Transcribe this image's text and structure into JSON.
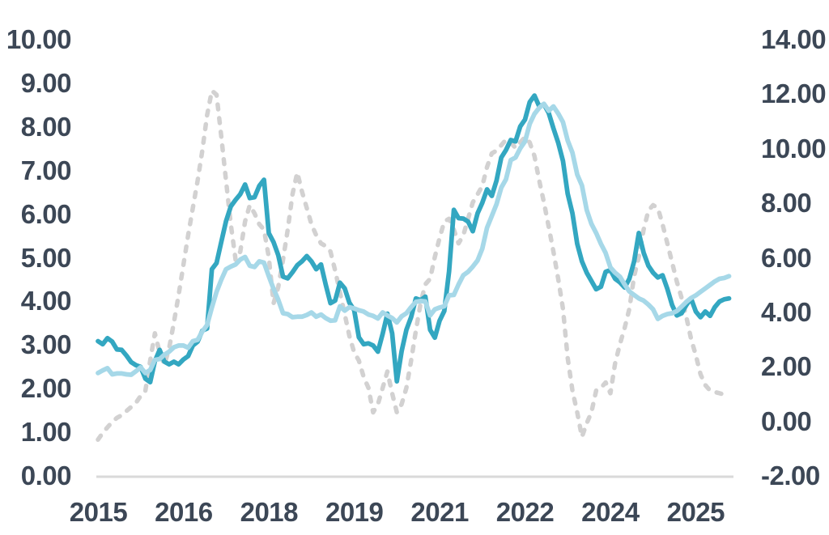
{
  "chart_data": {
    "type": "line",
    "title": "",
    "xlabel": "",
    "ylabel_left": "",
    "ylabel_right": "",
    "grid": false,
    "legend": "none",
    "x_axis": {
      "start": "2015-01",
      "frequency": "monthly",
      "tick_labels": [
        "2015",
        "2016",
        "2018",
        "2019",
        "2021",
        "2022",
        "2024",
        "2025"
      ],
      "tick_interval_months": 18
    },
    "y_axis_left": {
      "min": 0,
      "max": 10,
      "tick_labels": [
        "10.00",
        "9.00",
        "8.00",
        "7.00",
        "6.00",
        "5.00",
        "4.00",
        "3.00",
        "2.00",
        "1.00",
        "0.00"
      ]
    },
    "y_axis_right": {
      "min": -2,
      "max": 14,
      "tick_labels": [
        "14.00",
        "12.00",
        "10.00",
        "8.00",
        "6.00",
        "4.00",
        "2.00",
        "0.00",
        "-2.00"
      ]
    },
    "series": [
      {
        "name": "gray-dashed-line",
        "axis": "right",
        "style": "dashed",
        "color": "#D2D1D1",
        "values": [
          -0.7,
          -0.45,
          -0.25,
          -0.05,
          0.1,
          0.2,
          0.35,
          0.5,
          0.65,
          0.9,
          1.1,
          2.2,
          3.2,
          2.5,
          2.05,
          2.65,
          3.6,
          4.6,
          5.7,
          6.8,
          7.8,
          8.8,
          9.9,
          11.2,
          12.1,
          11.95,
          10.4,
          8.8,
          7.2,
          5.9,
          6.2,
          7.3,
          7.9,
          7.6,
          7.2,
          7.0,
          6.0,
          4.3,
          4.9,
          5.9,
          7.0,
          8.3,
          9.1,
          8.4,
          7.8,
          7.2,
          6.8,
          6.5,
          6.4,
          6.2,
          5.5,
          4.7,
          3.9,
          3.1,
          2.5,
          2.2,
          1.6,
          1.2,
          0.3,
          0.6,
          1.2,
          1.8,
          1.0,
          0.3,
          0.6,
          1.2,
          2.2,
          3.3,
          4.3,
          5.0,
          5.2,
          6.0,
          6.7,
          7.3,
          7.4,
          7.0,
          6.5,
          6.8,
          7.4,
          8.0,
          8.3,
          8.6,
          9.3,
          9.8,
          9.9,
          10.1,
          10.3,
          10.2,
          10.0,
          10.2,
          10.4,
          10.2,
          9.7,
          8.8,
          8.0,
          7.1,
          6.2,
          5.2,
          4.1,
          2.3,
          1.1,
          0.3,
          -0.6,
          -0.1,
          0.3,
          1.1,
          1.2,
          1.4,
          1.0,
          2.1,
          2.8,
          3.4,
          4.1,
          5.3,
          6.0,
          7.0,
          7.7,
          7.9,
          7.8,
          7.2,
          6.5,
          5.8,
          5.1,
          4.5,
          3.8,
          3.0,
          2.4,
          1.7,
          1.3,
          1.1,
          1.05,
          1.0,
          0.95,
          0.9
        ]
      },
      {
        "name": "teal-solid-line",
        "axis": "left",
        "style": "solid",
        "color": "#33A7C1",
        "values": [
          3.07,
          3.0,
          3.14,
          3.06,
          2.88,
          2.87,
          2.74,
          2.59,
          2.52,
          2.48,
          2.21,
          2.13,
          2.61,
          2.87,
          2.6,
          2.54,
          2.6,
          2.54,
          2.65,
          2.73,
          2.97,
          3.06,
          3.31,
          3.36,
          4.72,
          4.86,
          5.35,
          5.82,
          6.16,
          6.31,
          6.44,
          6.66,
          6.35,
          6.37,
          6.63,
          6.77,
          5.55,
          5.34,
          5.04,
          4.55,
          4.51,
          4.65,
          4.81,
          4.9,
          5.02,
          4.9,
          4.72,
          4.83,
          4.37,
          3.94,
          4.0,
          4.41,
          4.28,
          3.95,
          3.78,
          3.16,
          3.0,
          3.02,
          2.97,
          2.83,
          3.24,
          3.7,
          3.25,
          2.15,
          2.84,
          3.33,
          3.62,
          4.05,
          4.01,
          4.09,
          3.33,
          3.15,
          3.54,
          3.76,
          4.67,
          6.08,
          5.89,
          5.88,
          5.81,
          5.59,
          6.0,
          6.24,
          6.55,
          6.4,
          6.75,
          7.28,
          7.45,
          7.68,
          7.65,
          7.99,
          8.15,
          8.55,
          8.7,
          8.45,
          8.5,
          8.3,
          7.95,
          7.62,
          7.2,
          6.45,
          6.0,
          5.3,
          4.9,
          4.64,
          4.45,
          4.26,
          4.32,
          4.66,
          4.7,
          4.5,
          4.42,
          4.3,
          4.5,
          4.9,
          5.55,
          5.1,
          4.8,
          4.64,
          4.53,
          4.58,
          4.27,
          3.9,
          3.66,
          3.71,
          3.9,
          4.05,
          3.75,
          3.62,
          3.75,
          3.65,
          3.85,
          3.98,
          4.03,
          4.05
        ]
      },
      {
        "name": "light-blue-solid-line",
        "axis": "left",
        "style": "solid",
        "color": "#A6D8E8",
        "values": [
          2.34,
          2.4,
          2.45,
          2.31,
          2.33,
          2.33,
          2.31,
          2.3,
          2.38,
          2.47,
          2.34,
          2.41,
          2.64,
          2.66,
          2.76,
          2.83,
          2.93,
          2.97,
          2.97,
          2.92,
          3.07,
          3.1,
          3.29,
          3.44,
          3.84,
          4.2,
          4.48,
          4.72,
          4.78,
          4.83,
          4.94,
          5.0,
          4.8,
          4.77,
          4.9,
          4.87,
          4.56,
          4.27,
          4.02,
          3.71,
          3.69,
          3.62,
          3.63,
          3.63,
          3.67,
          3.73,
          3.63,
          3.68,
          3.6,
          3.54,
          3.55,
          3.87,
          3.77,
          3.85,
          3.82,
          3.78,
          3.75,
          3.68,
          3.65,
          3.59,
          3.73,
          3.66,
          3.6,
          3.5,
          3.64,
          3.71,
          3.85,
          3.97,
          3.99,
          3.98,
          3.66,
          3.8,
          3.84,
          3.87,
          4.12,
          4.13,
          4.37,
          4.58,
          4.66,
          4.78,
          4.92,
          5.19,
          5.67,
          5.94,
          6.21,
          6.59,
          6.78,
          7.22,
          7.28,
          7.49,
          7.65,
          8.05,
          8.28,
          8.42,
          8.51,
          8.35,
          8.45,
          8.29,
          8.09,
          7.67,
          7.39,
          6.89,
          6.64,
          6.08,
          5.76,
          5.55,
          5.3,
          5.09,
          4.76,
          4.64,
          4.55,
          4.37,
          4.21,
          4.13,
          4.05,
          4.0,
          3.91,
          3.8,
          3.58,
          3.65,
          3.69,
          3.71,
          3.76,
          3.86,
          3.97,
          4.06,
          4.12,
          4.2,
          4.28,
          4.36,
          4.44,
          4.5,
          4.52,
          4.56
        ]
      }
    ]
  },
  "colors": {
    "background": "#FFFFFF",
    "axis_text": "#3C4756",
    "axis_line": "#D9D9D9",
    "teal_line": "#33A7C1",
    "light_blue_line": "#A6D8E8",
    "gray_dashed_line": "#D2D1D1"
  }
}
